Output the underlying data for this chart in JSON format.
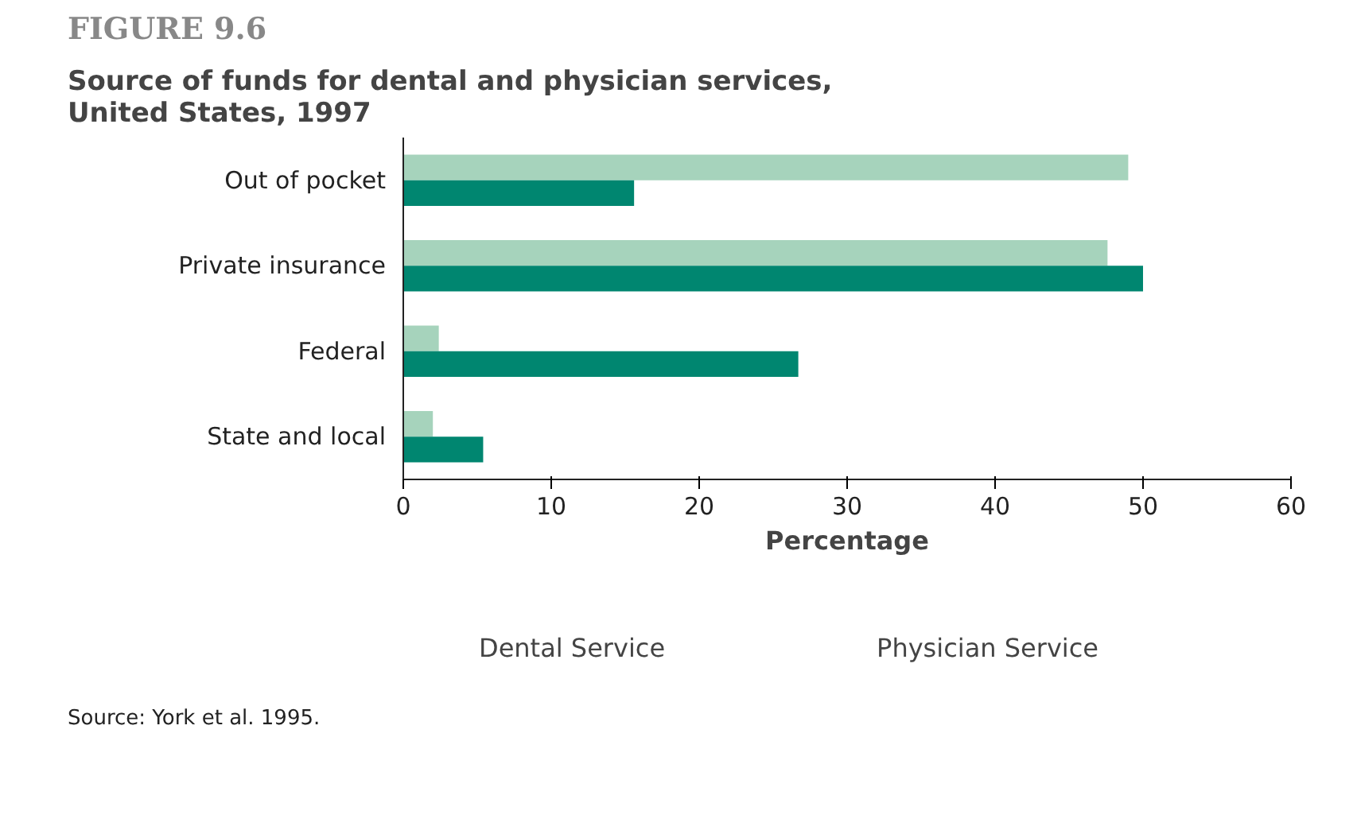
{
  "chart_data": {
    "type": "bar",
    "orientation": "horizontal",
    "title": "FIGURE 9.6",
    "subtitle": "Source of funds for dental and physician services, United States, 1997",
    "categories": [
      "Out of pocket",
      "Private insurance",
      "Federal",
      "State and local"
    ],
    "series": [
      {
        "name": "Dental Service",
        "color": "#a6d3bc",
        "values": [
          49.0,
          47.6,
          2.4,
          2.0
        ]
      },
      {
        "name": "Physician Service",
        "color": "#008670",
        "values": [
          15.6,
          50.0,
          26.7,
          5.4
        ]
      }
    ],
    "xlim": [
      0,
      60
    ],
    "xticks": [
      0,
      10,
      20,
      30,
      40,
      50,
      60
    ],
    "xlabel": "Percentage",
    "grid": false,
    "legend": "bottom",
    "annotations": [
      "Source: York et al. 1995."
    ]
  }
}
